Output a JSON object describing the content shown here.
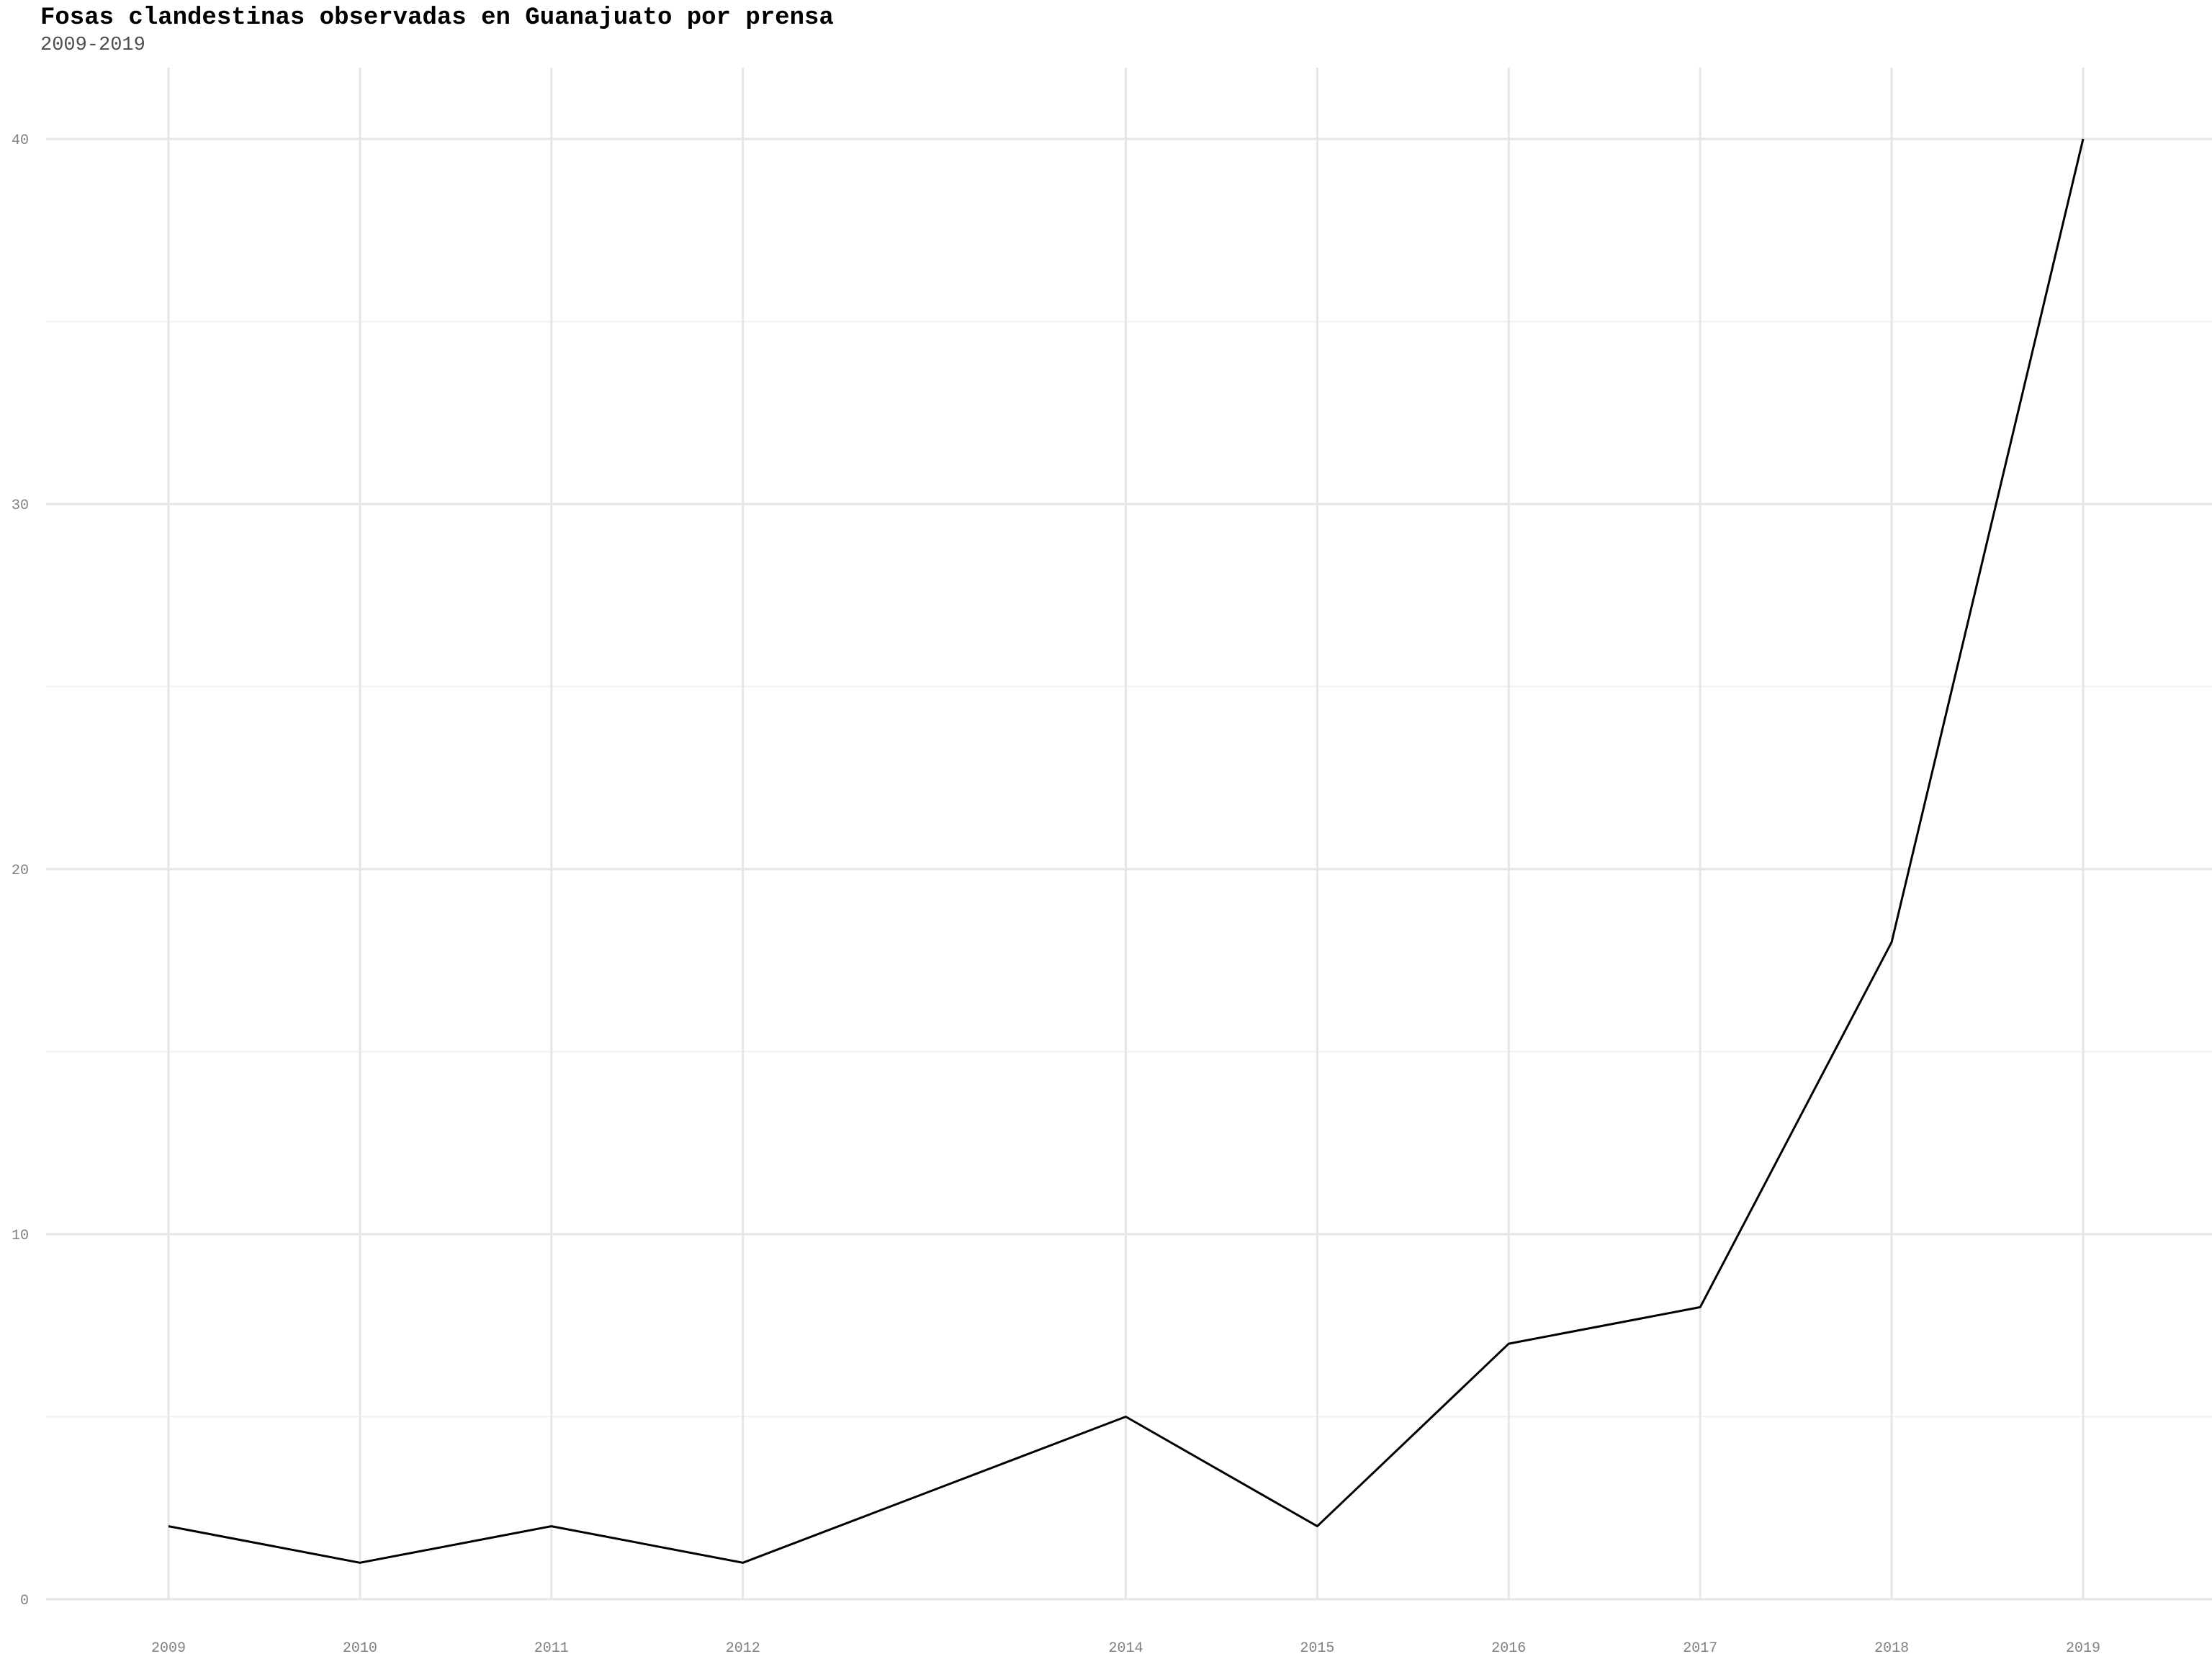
{
  "chart_data": {
    "type": "line",
    "title": "Fosas clandestinas observadas en Guanajuato por prensa",
    "subtitle": "2009-2019",
    "xlabel": "",
    "ylabel": "",
    "x": [
      2009,
      2010,
      2011,
      2012,
      2014,
      2015,
      2016,
      2017,
      2018,
      2019
    ],
    "series": [
      {
        "name": "fosas",
        "values": [
          2,
          1,
          2,
          1,
          5,
          2,
          7,
          8,
          18,
          40
        ]
      }
    ],
    "x_ticks": [
      "2009",
      "2010",
      "2011",
      "2012",
      "2014",
      "2015",
      "2016",
      "2017",
      "2018",
      "2019"
    ],
    "y_ticks": [
      "0",
      "10",
      "20",
      "30",
      "40"
    ],
    "ylim": [
      0,
      40
    ],
    "grid": true,
    "legend": "none",
    "colors": {
      "line": "#000000",
      "grid_major": "#e6e6e6",
      "grid_minor": "#f0f0f0",
      "tick_text": "#808080"
    }
  }
}
